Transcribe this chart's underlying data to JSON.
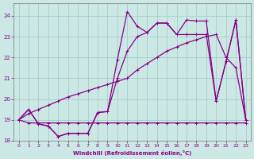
{
  "bg_color": "#cce8e4",
  "grid_color": "#aacccc",
  "line_color": "#880088",
  "xlabel": "Windchill (Refroidissement éolien,°C)",
  "xlabel_color": "#880088",
  "tick_color": "#880088",
  "xlim": [
    -0.5,
    23.5
  ],
  "ylim": [
    18.0,
    24.6
  ],
  "yticks": [
    18,
    19,
    20,
    21,
    22,
    23,
    24
  ],
  "xticks": [
    0,
    1,
    2,
    3,
    4,
    5,
    6,
    7,
    8,
    9,
    10,
    11,
    12,
    13,
    14,
    15,
    16,
    17,
    18,
    19,
    20,
    21,
    22,
    23
  ],
  "line_spiky_x": [
    0,
    1,
    2,
    3,
    4,
    5,
    6,
    7,
    8,
    9,
    10,
    11,
    12,
    13,
    14,
    15,
    16,
    17,
    18,
    19,
    20,
    21,
    22,
    23
  ],
  "line_spiky_y": [
    19.0,
    19.5,
    18.8,
    18.7,
    18.2,
    18.35,
    18.35,
    18.35,
    19.35,
    19.4,
    21.9,
    24.2,
    23.5,
    23.2,
    23.65,
    23.65,
    23.1,
    23.8,
    23.75,
    23.75,
    19.9,
    21.8,
    23.8,
    19.0
  ],
  "line_smooth_x": [
    0,
    1,
    2,
    3,
    4,
    5,
    6,
    7,
    8,
    9,
    10,
    11,
    12,
    13,
    14,
    15,
    16,
    17,
    18,
    19,
    20,
    21,
    22,
    23
  ],
  "line_smooth_y": [
    19.0,
    19.3,
    19.5,
    19.7,
    19.9,
    20.1,
    20.25,
    20.4,
    20.55,
    20.7,
    20.85,
    21.0,
    21.4,
    21.7,
    22.0,
    22.3,
    22.5,
    22.7,
    22.85,
    23.0,
    23.1,
    22.0,
    21.5,
    19.0
  ],
  "line_zigzag_x": [
    0,
    1,
    2,
    3,
    4,
    5,
    6,
    7,
    8,
    9,
    10,
    11,
    12,
    13,
    14,
    15,
    16,
    17,
    18,
    19,
    20,
    21,
    22,
    23
  ],
  "line_zigzag_y": [
    19.0,
    19.5,
    18.8,
    18.7,
    18.2,
    18.35,
    18.35,
    18.35,
    19.35,
    19.4,
    21.0,
    22.3,
    23.0,
    23.2,
    23.65,
    23.65,
    23.1,
    23.1,
    23.1,
    23.1,
    19.9,
    21.8,
    23.8,
    19.0
  ],
  "line_flat_x": [
    0,
    1,
    2,
    3,
    4,
    5,
    6,
    7,
    8,
    9,
    10,
    11,
    12,
    13,
    14,
    15,
    16,
    17,
    18,
    19,
    20,
    21,
    22,
    23
  ],
  "line_flat_y": [
    19.0,
    18.85,
    18.85,
    18.85,
    18.85,
    18.85,
    18.85,
    18.85,
    18.85,
    18.85,
    18.85,
    18.85,
    18.85,
    18.85,
    18.85,
    18.85,
    18.85,
    18.85,
    18.85,
    18.85,
    18.85,
    18.85,
    18.85,
    18.85
  ]
}
